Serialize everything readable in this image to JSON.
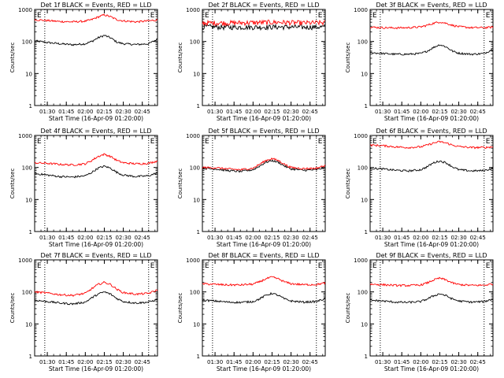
{
  "figure": {
    "xlabel": "Start Time (16-Apr-09 01:20:00)",
    "ylabel": "Counts/sec"
  },
  "chart_data": [
    {
      "type": "line",
      "title": "Det 1f BLACK = Events, RED = LLD",
      "xlabel": "Start Time (16-Apr-09 01:20:00)",
      "ylabel": "Counts/sec",
      "yscale": "log",
      "ylim": [
        1,
        1000
      ],
      "xlim": [
        "01:20",
        "02:57"
      ],
      "x_ticks": [
        "01:30",
        "01:45",
        "02:00",
        "02:15",
        "02:30",
        "02:45"
      ],
      "y_ticks": [
        "1",
        "10",
        "100",
        "1000"
      ],
      "vlines": [
        "01:28",
        "02:50"
      ],
      "markers": [
        "E",
        "E"
      ],
      "series": [
        {
          "name": "Events",
          "color": "#000000",
          "x": [
            "01:20",
            "01:30",
            "01:40",
            "01:50",
            "02:00",
            "02:05",
            "02:10",
            "02:15",
            "02:20",
            "02:25",
            "02:30",
            "02:40",
            "02:50",
            "02:57"
          ],
          "values": [
            105,
            93,
            85,
            79,
            85,
            100,
            130,
            155,
            130,
            95,
            85,
            80,
            85,
            118
          ]
        },
        {
          "name": "LLD",
          "color": "#ff0000",
          "x": [
            "01:20",
            "01:30",
            "01:40",
            "01:50",
            "02:00",
            "02:05",
            "02:10",
            "02:15",
            "02:20",
            "02:25",
            "02:30",
            "02:40",
            "02:50",
            "02:57"
          ],
          "values": [
            480,
            450,
            420,
            410,
            430,
            480,
            580,
            680,
            590,
            480,
            440,
            410,
            440,
            470
          ]
        }
      ]
    },
    {
      "type": "line",
      "title": "Det 2f BLACK = Events, RED = LLD",
      "xlabel": "Start Time (16-Apr-09 01:20:00)",
      "ylabel": "Counts/sec",
      "yscale": "log",
      "ylim": [
        1,
        1000
      ],
      "xlim": [
        "01:20",
        "02:57"
      ],
      "x_ticks": [
        "01:30",
        "01:45",
        "02:00",
        "02:15",
        "02:30",
        "02:45"
      ],
      "y_ticks": [
        "1",
        "10",
        "100",
        "1000"
      ],
      "vlines": [
        "01:28",
        "02:50"
      ],
      "markers": [
        "E",
        "E"
      ],
      "series": [
        {
          "name": "Events",
          "color": "#000000",
          "x": [
            "01:20",
            "01:40",
            "02:00",
            "02:20",
            "02:40",
            "02:57"
          ],
          "values": [
            290,
            280,
            280,
            285,
            280,
            285
          ]
        },
        {
          "name": "LLD",
          "color": "#ff0000",
          "x": [
            "01:20",
            "01:40",
            "02:00",
            "02:20",
            "02:40",
            "02:57"
          ],
          "values": [
            380,
            380,
            390,
            400,
            380,
            385
          ]
        }
      ]
    },
    {
      "type": "line",
      "title": "Det 3f BLACK = Events, RED = LLD",
      "xlabel": "Start Time (16-Apr-09 01:20:00)",
      "ylabel": "Counts/sec",
      "yscale": "log",
      "ylim": [
        1,
        1000
      ],
      "xlim": [
        "01:20",
        "02:57"
      ],
      "x_ticks": [
        "01:30",
        "01:45",
        "02:00",
        "02:15",
        "02:30",
        "02:45"
      ],
      "y_ticks": [
        "1",
        "10",
        "100",
        "1000"
      ],
      "vlines": [
        "01:28",
        "02:50"
      ],
      "markers": [
        "E",
        "E"
      ],
      "series": [
        {
          "name": "Events",
          "color": "#000000",
          "x": [
            "01:20",
            "01:30",
            "01:40",
            "01:50",
            "02:00",
            "02:05",
            "02:10",
            "02:15",
            "02:20",
            "02:25",
            "02:30",
            "02:40",
            "02:50",
            "02:57"
          ],
          "values": [
            45,
            42,
            40,
            40,
            42,
            50,
            65,
            80,
            68,
            50,
            43,
            40,
            42,
            58
          ]
        },
        {
          "name": "LLD",
          "color": "#ff0000",
          "x": [
            "01:20",
            "01:30",
            "01:40",
            "01:50",
            "02:00",
            "02:05",
            "02:10",
            "02:15",
            "02:20",
            "02:25",
            "02:30",
            "02:40",
            "02:50",
            "02:57"
          ],
          "values": [
            280,
            270,
            265,
            270,
            285,
            320,
            370,
            410,
            370,
            320,
            290,
            270,
            270,
            280
          ]
        }
      ]
    },
    {
      "type": "line",
      "title": "Det 4f BLACK = Events, RED = LLD",
      "xlabel": "Start Time (16-Apr-09 01:20:00)",
      "ylabel": "Counts/sec",
      "yscale": "log",
      "ylim": [
        1,
        1000
      ],
      "xlim": [
        "01:20",
        "02:57"
      ],
      "x_ticks": [
        "01:30",
        "01:45",
        "02:00",
        "02:15",
        "02:30",
        "02:45"
      ],
      "y_ticks": [
        "1",
        "10",
        "100",
        "1000"
      ],
      "vlines": [
        "01:28",
        "02:50"
      ],
      "markers": [
        "E",
        "E"
      ],
      "series": [
        {
          "name": "Events",
          "color": "#000000",
          "x": [
            "01:20",
            "01:30",
            "01:40",
            "01:50",
            "02:00",
            "02:05",
            "02:10",
            "02:15",
            "02:20",
            "02:25",
            "02:30",
            "02:40",
            "02:50",
            "02:57"
          ],
          "values": [
            65,
            58,
            52,
            50,
            55,
            70,
            95,
            110,
            95,
            70,
            58,
            52,
            55,
            68
          ]
        },
        {
          "name": "LLD",
          "color": "#ff0000",
          "x": [
            "01:20",
            "01:30",
            "01:40",
            "01:50",
            "02:00",
            "02:05",
            "02:10",
            "02:15",
            "02:20",
            "02:25",
            "02:30",
            "02:40",
            "02:50",
            "02:57"
          ],
          "values": [
            140,
            135,
            125,
            120,
            130,
            165,
            220,
            260,
            220,
            165,
            140,
            130,
            135,
            160
          ]
        }
      ]
    },
    {
      "type": "line",
      "title": "Det 5f BLACK = Events, RED = LLD",
      "xlabel": "Start Time (16-Apr-09 01:20:00)",
      "ylabel": "Counts/sec",
      "yscale": "log",
      "ylim": [
        1,
        1000
      ],
      "xlim": [
        "01:20",
        "02:57"
      ],
      "x_ticks": [
        "01:30",
        "01:45",
        "02:00",
        "02:15",
        "02:30",
        "02:45"
      ],
      "y_ticks": [
        "1",
        "10",
        "100",
        "1000"
      ],
      "vlines": [
        "01:28",
        "02:50"
      ],
      "markers": [
        "E",
        "E"
      ],
      "series": [
        {
          "name": "Events",
          "color": "#000000",
          "x": [
            "01:20",
            "01:30",
            "01:40",
            "01:50",
            "02:00",
            "02:05",
            "02:10",
            "02:15",
            "02:20",
            "02:25",
            "02:30",
            "02:40",
            "02:50",
            "02:57"
          ],
          "values": [
            95,
            90,
            80,
            75,
            85,
            110,
            145,
            165,
            145,
            110,
            90,
            82,
            85,
            100
          ]
        },
        {
          "name": "LLD",
          "color": "#ff0000",
          "x": [
            "01:20",
            "01:30",
            "01:40",
            "01:50",
            "02:00",
            "02:05",
            "02:10",
            "02:15",
            "02:20",
            "02:25",
            "02:30",
            "02:40",
            "02:50",
            "02:57"
          ],
          "values": [
            100,
            98,
            90,
            85,
            95,
            125,
            165,
            190,
            165,
            125,
            100,
            92,
            95,
            115
          ]
        }
      ]
    },
    {
      "type": "line",
      "title": "Det 6f BLACK = Events, RED = LLD",
      "xlabel": "Start Time (16-Apr-09 01:20:00)",
      "ylabel": "Counts/sec",
      "yscale": "log",
      "ylim": [
        1,
        1000
      ],
      "xlim": [
        "01:20",
        "02:57"
      ],
      "x_ticks": [
        "01:30",
        "01:45",
        "02:00",
        "02:15",
        "02:30",
        "02:45"
      ],
      "y_ticks": [
        "1",
        "10",
        "100",
        "1000"
      ],
      "vlines": [
        "01:28",
        "02:50"
      ],
      "markers": [
        "E",
        "E"
      ],
      "series": [
        {
          "name": "Events",
          "color": "#000000",
          "x": [
            "01:20",
            "01:30",
            "01:40",
            "01:50",
            "02:00",
            "02:05",
            "02:10",
            "02:15",
            "02:20",
            "02:25",
            "02:30",
            "02:40",
            "02:50",
            "02:57"
          ],
          "values": [
            95,
            90,
            82,
            78,
            85,
            105,
            140,
            160,
            140,
            105,
            85,
            78,
            80,
            95
          ]
        },
        {
          "name": "LLD",
          "color": "#ff0000",
          "x": [
            "01:20",
            "01:30",
            "01:40",
            "01:50",
            "02:00",
            "02:05",
            "02:10",
            "02:15",
            "02:20",
            "02:25",
            "02:30",
            "02:40",
            "02:50",
            "02:57"
          ],
          "values": [
            500,
            480,
            440,
            420,
            440,
            500,
            580,
            640,
            580,
            500,
            450,
            420,
            420,
            440
          ]
        }
      ]
    },
    {
      "type": "line",
      "title": "Det 7f BLACK = Events, RED = LLD",
      "xlabel": "Start Time (16-Apr-09 01:20:00)",
      "ylabel": "Counts/sec",
      "yscale": "log",
      "ylim": [
        1,
        1000
      ],
      "xlim": [
        "01:20",
        "02:57"
      ],
      "x_ticks": [
        "01:30",
        "01:45",
        "02:00",
        "02:15",
        "02:30",
        "02:45"
      ],
      "y_ticks": [
        "1",
        "10",
        "100",
        "1000"
      ],
      "vlines": [
        "01:28",
        "02:50"
      ],
      "markers": [
        "E",
        "E"
      ],
      "series": [
        {
          "name": "Events",
          "color": "#000000",
          "x": [
            "01:20",
            "01:30",
            "01:40",
            "01:50",
            "02:00",
            "02:05",
            "02:10",
            "02:15",
            "02:20",
            "02:25",
            "02:30",
            "02:40",
            "02:50",
            "02:57"
          ],
          "values": [
            55,
            50,
            45,
            42,
            48,
            65,
            85,
            100,
            85,
            62,
            50,
            45,
            48,
            58
          ]
        },
        {
          "name": "LLD",
          "color": "#ff0000",
          "x": [
            "01:20",
            "01:30",
            "01:40",
            "01:50",
            "02:00",
            "02:05",
            "02:10",
            "02:15",
            "02:20",
            "02:25",
            "02:30",
            "02:40",
            "02:50",
            "02:57"
          ],
          "values": [
            100,
            92,
            82,
            78,
            90,
            125,
            170,
            200,
            170,
            120,
            95,
            85,
            90,
            115
          ]
        }
      ]
    },
    {
      "type": "line",
      "title": "Det 8f BLACK = Events, RED = LLD",
      "xlabel": "Start Time (16-Apr-09 01:20:00)",
      "ylabel": "Counts/sec",
      "yscale": "log",
      "ylim": [
        1,
        1000
      ],
      "xlim": [
        "01:20",
        "02:57"
      ],
      "x_ticks": [
        "01:30",
        "01:45",
        "02:00",
        "02:15",
        "02:30",
        "02:45"
      ],
      "y_ticks": [
        "1",
        "10",
        "100",
        "1000"
      ],
      "vlines": [
        "01:28",
        "02:50"
      ],
      "markers": [
        "E",
        "E"
      ],
      "series": [
        {
          "name": "Events",
          "color": "#000000",
          "x": [
            "01:20",
            "01:30",
            "01:40",
            "01:50",
            "02:00",
            "02:05",
            "02:10",
            "02:15",
            "02:20",
            "02:25",
            "02:30",
            "02:40",
            "02:50",
            "02:57"
          ],
          "values": [
            55,
            52,
            48,
            47,
            50,
            60,
            78,
            90,
            78,
            60,
            52,
            48,
            50,
            62
          ]
        },
        {
          "name": "LLD",
          "color": "#ff0000",
          "x": [
            "01:20",
            "01:30",
            "01:40",
            "01:50",
            "02:00",
            "02:05",
            "02:10",
            "02:15",
            "02:20",
            "02:25",
            "02:30",
            "02:40",
            "02:50",
            "02:57"
          ],
          "values": [
            180,
            172,
            165,
            165,
            175,
            205,
            255,
            290,
            255,
            205,
            180,
            168,
            170,
            190
          ]
        }
      ]
    },
    {
      "type": "line",
      "title": "Det 9f BLACK = Events, RED = LLD",
      "xlabel": "Start Time (16-Apr-09 01:20:00)",
      "ylabel": "Counts/sec",
      "yscale": "log",
      "ylim": [
        1,
        1000
      ],
      "xlim": [
        "01:20",
        "02:57"
      ],
      "x_ticks": [
        "01:30",
        "01:45",
        "02:00",
        "02:15",
        "02:30",
        "02:45"
      ],
      "y_ticks": [
        "1",
        "10",
        "100",
        "1000"
      ],
      "vlines": [
        "01:28",
        "02:50"
      ],
      "markers": [
        "E",
        "E"
      ],
      "series": [
        {
          "name": "Events",
          "color": "#000000",
          "x": [
            "01:20",
            "01:30",
            "01:40",
            "01:50",
            "02:00",
            "02:05",
            "02:10",
            "02:15",
            "02:20",
            "02:25",
            "02:30",
            "02:40",
            "02:50",
            "02:57"
          ],
          "values": [
            55,
            52,
            48,
            47,
            50,
            60,
            75,
            88,
            76,
            60,
            52,
            48,
            50,
            60
          ]
        },
        {
          "name": "LLD",
          "color": "#ff0000",
          "x": [
            "01:20",
            "01:30",
            "01:40",
            "01:50",
            "02:00",
            "02:05",
            "02:10",
            "02:15",
            "02:20",
            "02:25",
            "02:30",
            "02:40",
            "02:50",
            "02:57"
          ],
          "values": [
            175,
            168,
            160,
            158,
            165,
            190,
            235,
            270,
            235,
            190,
            170,
            160,
            162,
            178
          ]
        }
      ]
    }
  ]
}
